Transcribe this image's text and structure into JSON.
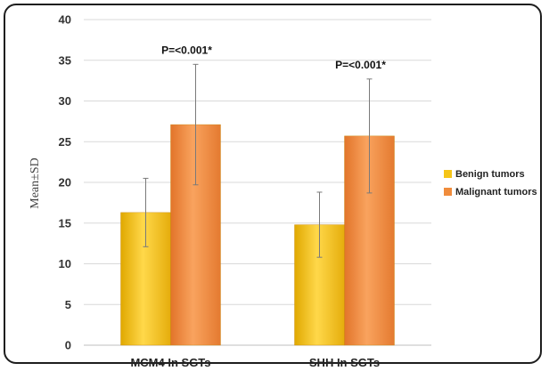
{
  "chart_data": {
    "type": "bar",
    "categories": [
      "MCM4 In SGTs",
      "SHH In SGTs"
    ],
    "series": [
      {
        "name": "Benign tumors",
        "values": [
          16.3,
          14.8
        ],
        "errors": [
          4.2,
          4.0
        ],
        "color": "#f5c518"
      },
      {
        "name": "Malignant tumors",
        "values": [
          27.1,
          25.7
        ],
        "errors": [
          7.4,
          7.0
        ],
        "color": "#f08c3c"
      }
    ],
    "annotations": [
      "P=<0.001*",
      "P=<0.001*"
    ],
    "xlabel": "",
    "ylabel": "Mean±SD",
    "ylim": [
      0,
      40
    ],
    "yticks": [
      0,
      5,
      10,
      15,
      20,
      25,
      30,
      35,
      40
    ],
    "grid": true,
    "legend_position": "right"
  },
  "colors": {
    "benign": "#f5c518",
    "malignant": "#f08c3c",
    "grid": "#d9d9d9",
    "frame": "#1e1e1e"
  }
}
